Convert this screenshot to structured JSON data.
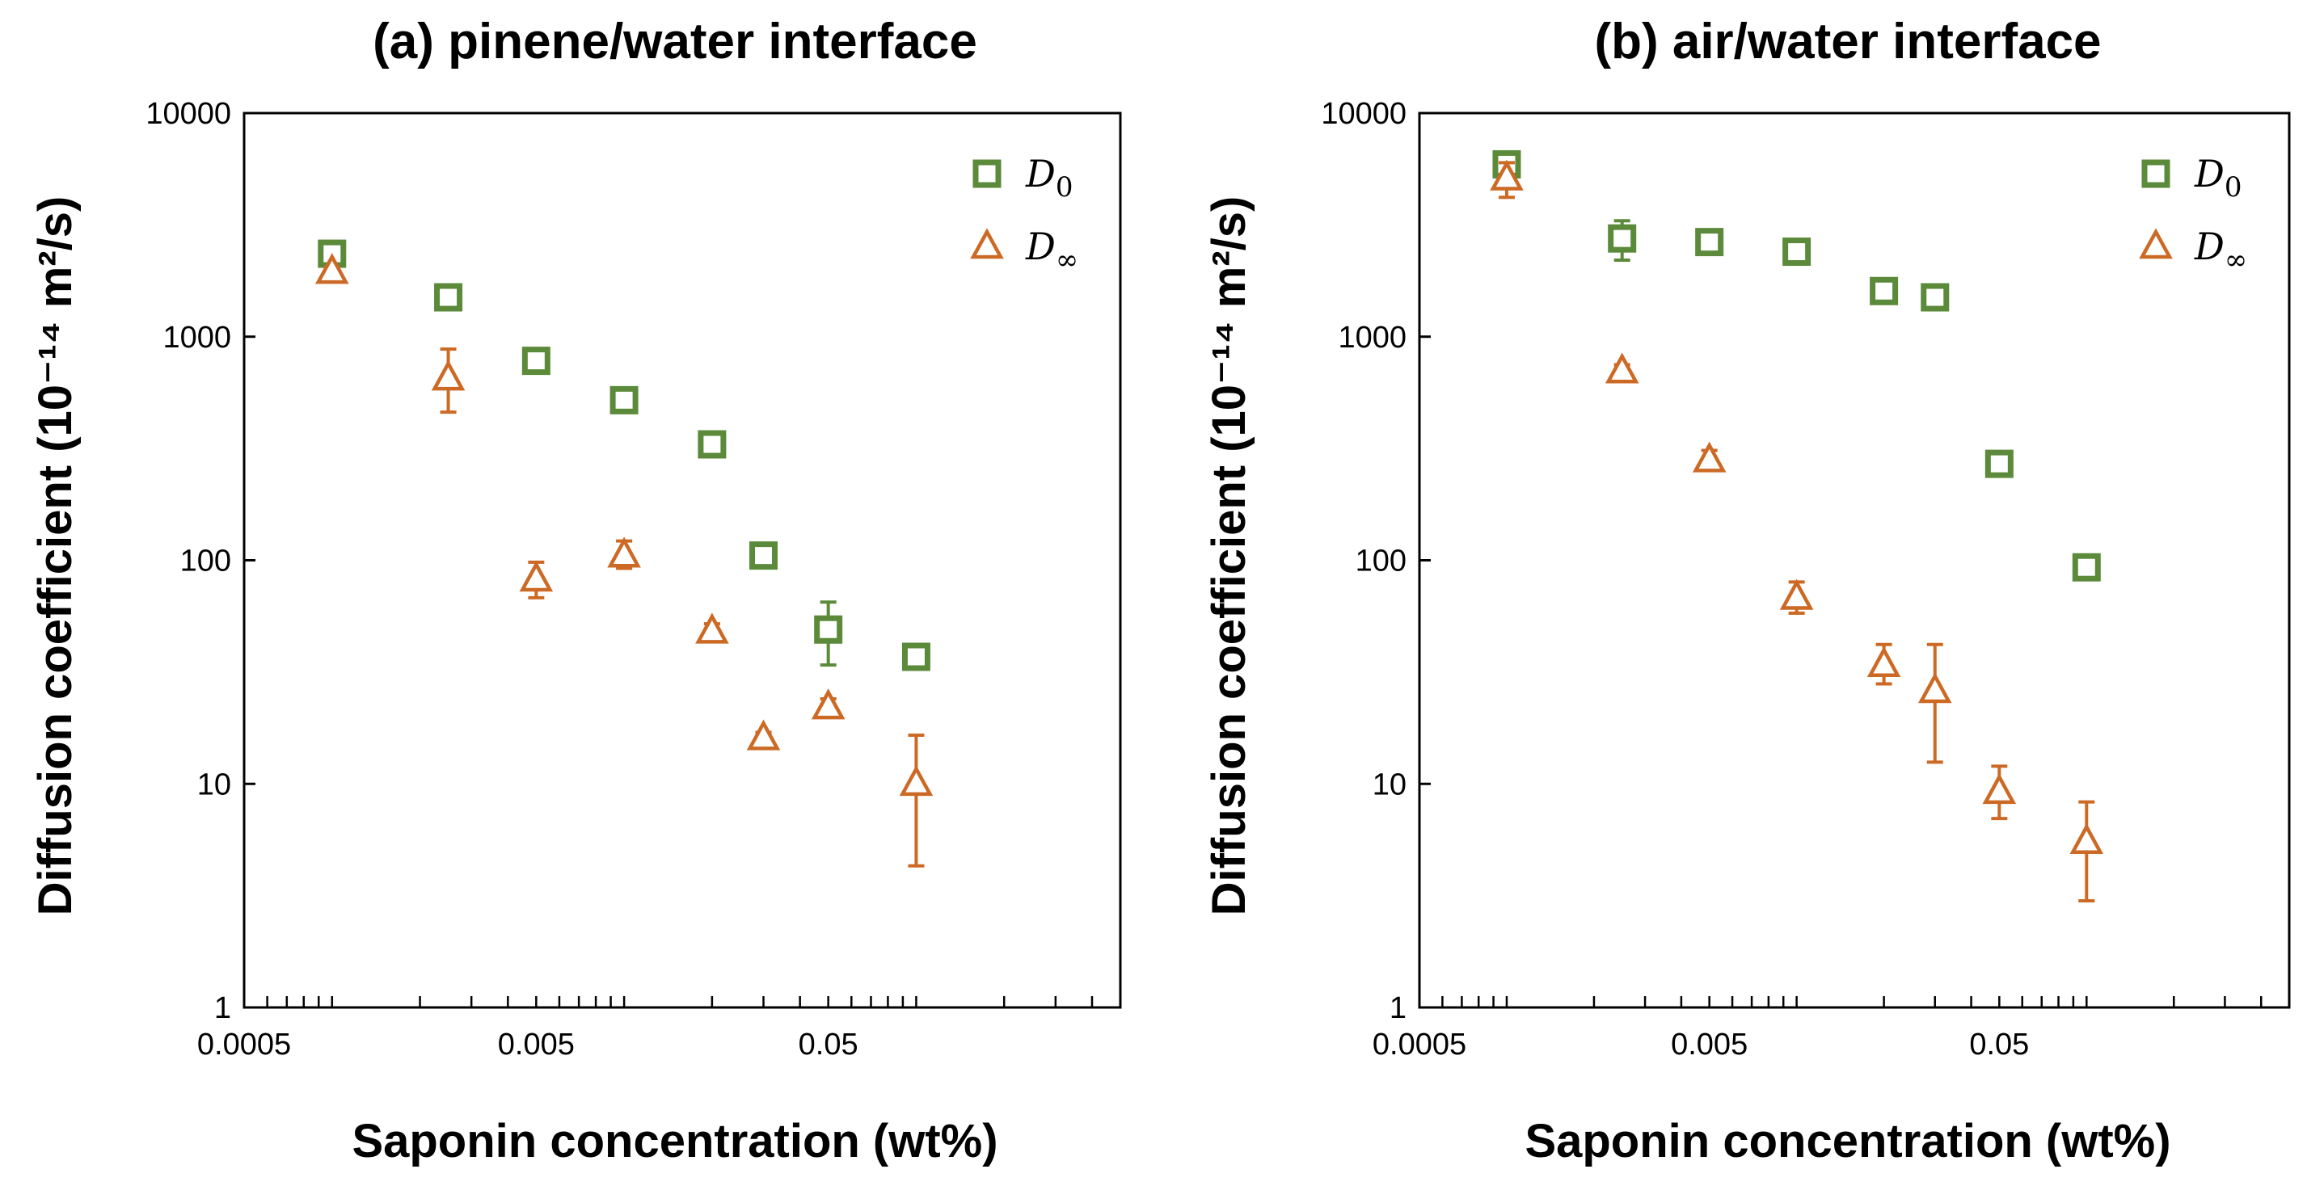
{
  "colors": {
    "d0": "#5b8a3a",
    "dinf": "#cc6a25",
    "axis": "#000000"
  },
  "chart_data": [
    {
      "type": "scatter",
      "title": "(a) pinene/water interface",
      "xlabel": "Saponin concentration (wt%)",
      "ylabel": "Diffusion coefficient (10⁻¹⁴ m²/s)",
      "xscale": "log",
      "yscale": "log",
      "xlim": [
        0.0005,
        0.5
      ],
      "ylim": [
        1,
        10000
      ],
      "x_ticks": [
        "0.0005",
        "0.005",
        "0.05"
      ],
      "y_ticks": [
        "1",
        "10",
        "100",
        "1000",
        "10000"
      ],
      "legend_position": "top-right",
      "series": [
        {
          "name": "D0",
          "legend_main": "D",
          "legend_sub": "0",
          "marker": "square",
          "color_key": "d0",
          "x": [
            0.001,
            0.0025,
            0.005,
            0.01,
            0.02,
            0.03,
            0.05,
            0.1
          ],
          "y": [
            2350,
            1500,
            780,
            520,
            330,
            105,
            49,
            37
          ],
          "err_low": [
            2200,
            1420,
            720,
            490,
            310,
            100,
            34,
            35
          ],
          "err_high": [
            2500,
            1580,
            850,
            550,
            350,
            110,
            65,
            40
          ]
        },
        {
          "name": "D∞",
          "legend_main": "D",
          "legend_sub": "∞",
          "marker": "triangle",
          "color_key": "dinf",
          "x": [
            0.001,
            0.0025,
            0.005,
            0.01,
            0.02,
            0.03,
            0.05,
            0.1
          ],
          "y": [
            1950,
            650,
            82,
            105,
            48,
            16,
            22,
            10
          ],
          "err_low": [
            1850,
            460,
            68,
            92,
            45,
            15,
            20,
            4.3
          ],
          "err_high": [
            2050,
            880,
            98,
            122,
            52,
            17,
            24,
            16.5
          ]
        }
      ]
    },
    {
      "type": "scatter",
      "title": "(b) air/water interface",
      "xlabel": "Saponin concentration (wt%)",
      "ylabel": "Diffusion coefficient (10⁻¹⁴ m²/s)",
      "xscale": "log",
      "yscale": "log",
      "xlim": [
        0.0005,
        0.5
      ],
      "ylim": [
        1,
        10000
      ],
      "x_ticks": [
        "0.0005",
        "0.005",
        "0.05"
      ],
      "y_ticks": [
        "1",
        "10",
        "100",
        "1000",
        "10000"
      ],
      "legend_position": "top-right",
      "series": [
        {
          "name": "D0",
          "legend_main": "D",
          "legend_sub": "0",
          "marker": "square",
          "color_key": "d0",
          "x": [
            0.001,
            0.0025,
            0.005,
            0.01,
            0.02,
            0.03,
            0.05,
            0.1
          ],
          "y": [
            5900,
            2750,
            2650,
            2400,
            1600,
            1500,
            270,
            93
          ],
          "err_low": [
            5500,
            2200,
            2450,
            2200,
            1500,
            1400,
            255,
            90
          ],
          "err_high": [
            6300,
            3300,
            2850,
            2600,
            1700,
            1600,
            285,
            96
          ]
        },
        {
          "name": "D∞",
          "legend_main": "D",
          "legend_sub": "∞",
          "marker": "triangle",
          "color_key": "dinf",
          "x": [
            0.001,
            0.0025,
            0.005,
            0.01,
            0.02,
            0.03,
            0.05,
            0.1
          ],
          "y": [
            5100,
            700,
            280,
            68,
            34,
            26,
            9.2,
            5.5
          ],
          "err_low": [
            4200,
            650,
            255,
            58,
            28,
            12.5,
            7,
            3
          ],
          "err_high": [
            6000,
            750,
            310,
            80,
            42,
            42,
            12,
            8.3
          ]
        }
      ]
    }
  ]
}
